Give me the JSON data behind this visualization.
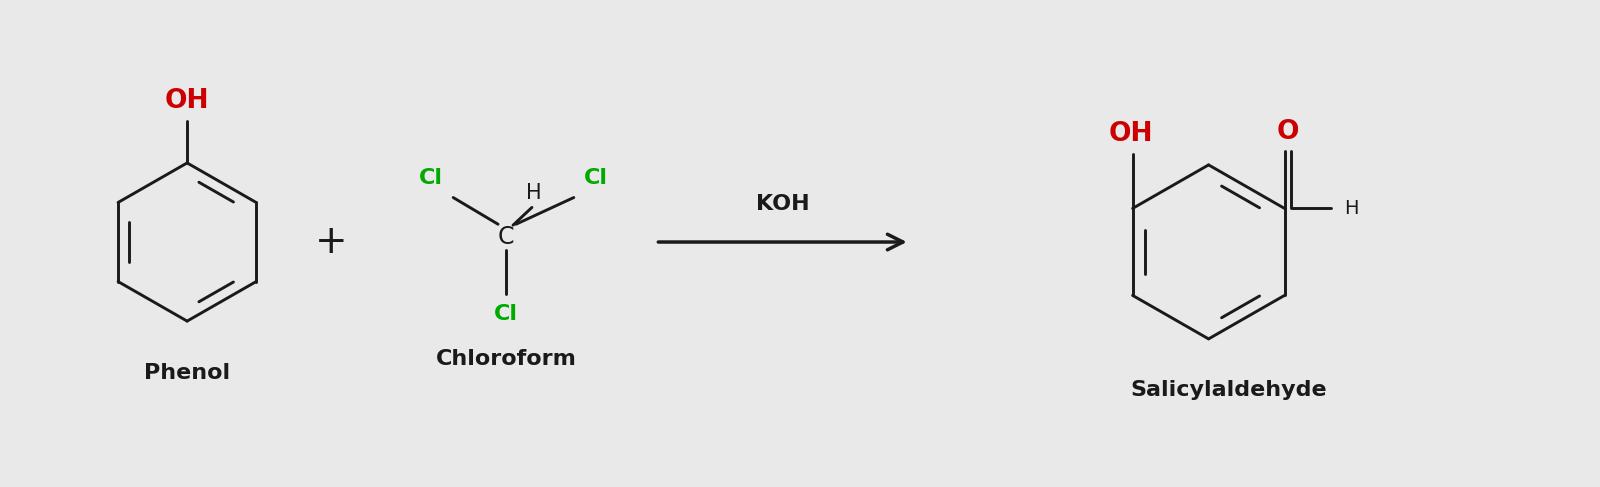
{
  "bg_color": "#e9e9e9",
  "black": "#1a1a1a",
  "red": "#cc0000",
  "green": "#00aa00",
  "label_phenol": "Phenol",
  "label_chloroform": "Chloroform",
  "label_salicylaldehyde": "Salicylaldehyde",
  "label_koh": "KOH",
  "label_plus": "+",
  "figsize": [
    16.0,
    4.87
  ],
  "dpi": 100
}
